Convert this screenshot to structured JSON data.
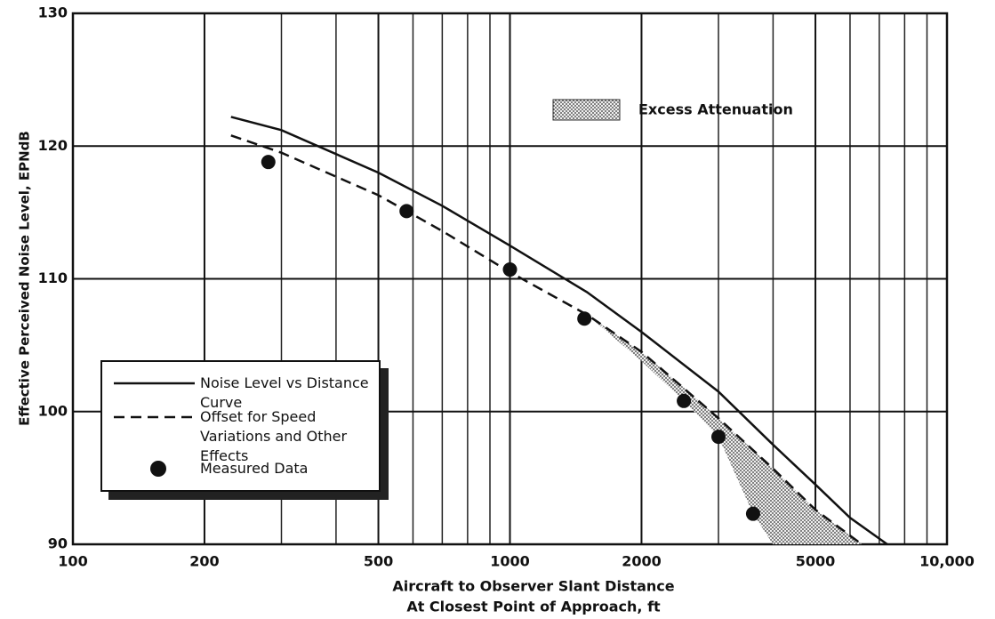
{
  "chart_data": {
    "type": "line",
    "xlabel": [
      "Aircraft to Observer Slant Distance",
      "At Closest Point of Approach, ft"
    ],
    "ylabel": "Effective Perceived Noise Level, EPNdB",
    "xscale": "log",
    "xlim": [
      100,
      10000
    ],
    "ylim": [
      90,
      130
    ],
    "xticks": [
      100,
      200,
      500,
      1000,
      2000,
      5000,
      {
        "value": 10000,
        "label": "10,000"
      }
    ],
    "x_gridlines": [
      300,
      400,
      600,
      700,
      800,
      900,
      3000,
      4000,
      6000,
      7000,
      8000,
      9000
    ],
    "yticks": [
      90,
      100,
      110,
      120,
      130
    ],
    "grid": true,
    "legend": "lower left",
    "series": [
      {
        "name": "Noise Level vs Distance Curve",
        "style": "solid",
        "color": "#111111",
        "x": [
          230,
          300,
          500,
          700,
          1000,
          1500,
          2000,
          3000,
          4000,
          5000,
          6000,
          7300
        ],
        "values": [
          122.2,
          121.2,
          118,
          115.5,
          112.5,
          109,
          106,
          101.5,
          97.5,
          94.5,
          92,
          90
        ]
      },
      {
        "name": "Offset for Speed Variations and Other Effects",
        "style": "dashed",
        "color": "#111111",
        "x": [
          230,
          300,
          500,
          700,
          1000,
          1500,
          2000,
          3000,
          4000,
          5000,
          6380
        ],
        "values": [
          120.8,
          119.5,
          116.3,
          113.6,
          110.5,
          107.3,
          104.5,
          99.5,
          95.7,
          92.6,
          90
        ]
      },
      {
        "name": "Measured Data",
        "style": "markers",
        "color": "#111111",
        "x": [
          280,
          580,
          1000,
          1480,
          2500,
          3000,
          3600
        ],
        "values": [
          118.8,
          115.1,
          110.7,
          107,
          100.8,
          98.1,
          92.3
        ]
      }
    ],
    "shaded_region": {
      "name": "Excess Attenuation",
      "x": [
        1500,
        2000,
        2500,
        3000,
        3600,
        4000,
        5000,
        6380
      ],
      "lower": [
        107.3,
        103.8,
        100.8,
        98.1,
        92.3,
        90,
        90,
        90
      ],
      "upper": [
        107.3,
        104.5,
        101.8,
        99.5,
        97.1,
        95.7,
        92.6,
        90
      ]
    }
  }
}
